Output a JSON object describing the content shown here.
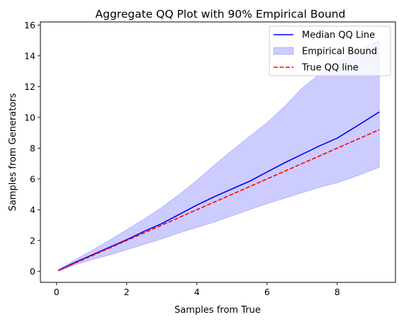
{
  "chart_data": {
    "type": "line",
    "title": "Aggregate QQ Plot with 90% Empirical Bound",
    "xlabel": "Samples from True",
    "ylabel": "Samples from Generators",
    "xlim": [
      -0.46,
      9.66
    ],
    "ylim": [
      -0.72,
      16.2
    ],
    "x_ticks": [
      0,
      2,
      4,
      6,
      8
    ],
    "y_ticks": [
      0,
      2,
      4,
      6,
      8,
      10,
      12,
      14,
      16
    ],
    "grid": false,
    "legend_position": "top-right",
    "x": [
      0.05,
      0.5,
      1.0,
      1.5,
      2.0,
      2.5,
      3.0,
      3.5,
      4.0,
      4.5,
      5.0,
      5.5,
      6.0,
      6.5,
      7.0,
      7.5,
      8.0,
      8.5,
      9.2
    ],
    "series": [
      {
        "name": "Median QQ Line",
        "kind": "line",
        "color": "#0000ff",
        "style": "solid",
        "values": [
          0.05,
          0.55,
          1.05,
          1.55,
          2.05,
          2.6,
          3.1,
          3.7,
          4.3,
          4.85,
          5.35,
          5.85,
          6.45,
          7.05,
          7.6,
          8.15,
          8.65,
          9.35,
          10.35
        ]
      },
      {
        "name": "Empirical Bound",
        "kind": "band",
        "color": "#0000ff",
        "opacity": 0.2,
        "lower": [
          0.0,
          0.4,
          0.75,
          1.05,
          1.4,
          1.75,
          2.1,
          2.5,
          2.85,
          3.2,
          3.6,
          4.0,
          4.4,
          4.75,
          5.1,
          5.45,
          5.75,
          6.15,
          6.75
        ],
        "upper": [
          0.1,
          0.7,
          1.35,
          2.0,
          2.7,
          3.4,
          4.15,
          5.0,
          5.9,
          6.9,
          7.85,
          8.75,
          9.65,
          10.7,
          11.9,
          12.8,
          13.55,
          14.3,
          15.0
        ]
      },
      {
        "name": "True QQ line",
        "kind": "line",
        "color": "#ff0000",
        "style": "dashed",
        "values": [
          0.05,
          0.5,
          1.0,
          1.5,
          2.0,
          2.5,
          3.0,
          3.5,
          4.0,
          4.5,
          5.0,
          5.5,
          6.0,
          6.5,
          7.0,
          7.5,
          8.0,
          8.5,
          9.2
        ]
      }
    ]
  }
}
